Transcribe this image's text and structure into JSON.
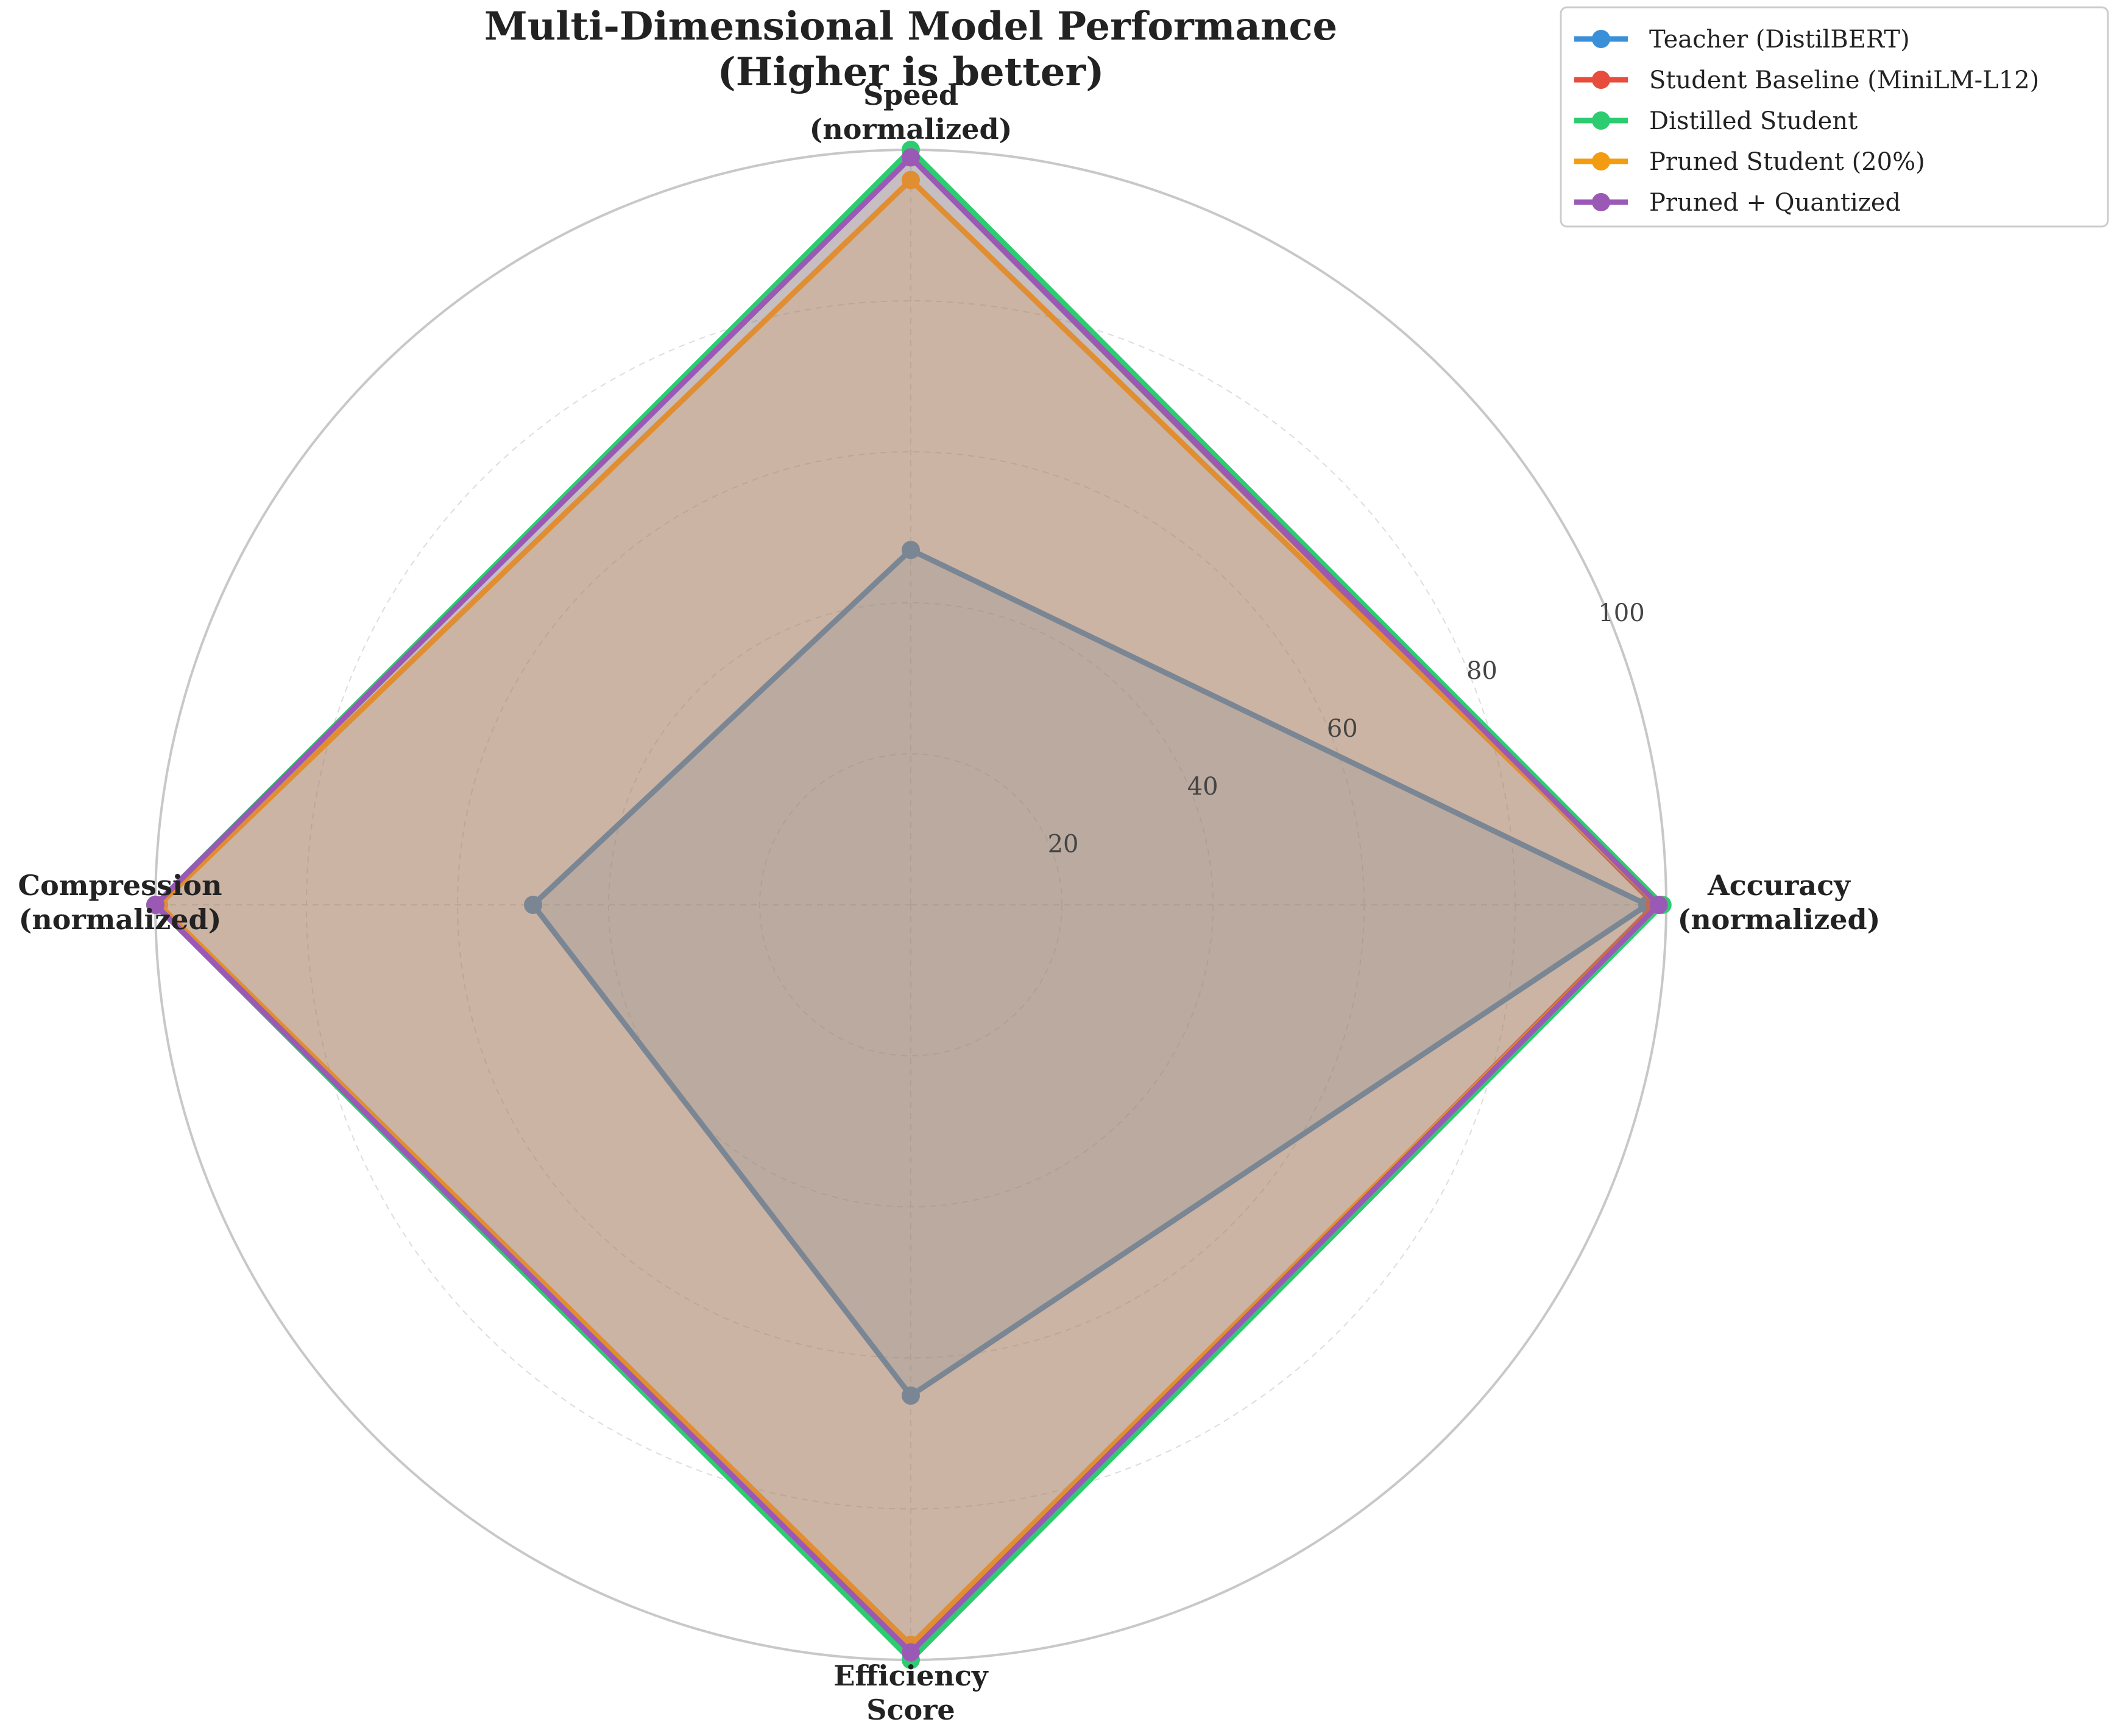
{
  "chart_data": {
    "type": "radar",
    "title": "Multi-Dimensional Model Performance",
    "subtitle": "(Higher is better)",
    "axes": [
      [
        "Accuracy",
        "(normalized)"
      ],
      [
        "Speed",
        "(normalized)"
      ],
      [
        "Compression",
        "(normalized)"
      ],
      [
        "Efficiency",
        "Score"
      ]
    ],
    "rlim": [
      0,
      100
    ],
    "rticks": [
      20,
      40,
      60,
      80,
      100
    ],
    "grid": true,
    "legend_position": "top-right",
    "series": [
      {
        "name": "Teacher (DistilBERT)",
        "color": "#3a8fd9",
        "values": [
          97.5,
          47,
          50,
          65
        ]
      },
      {
        "name": "Student Baseline (MiniLM-L12)",
        "color": "#e74c3c",
        "values": [
          98.5,
          99,
          100,
          99
        ]
      },
      {
        "name": "Distilled Student",
        "color": "#2ecc71",
        "values": [
          99.5,
          100,
          100,
          100
        ]
      },
      {
        "name": "Pruned Student (20%)",
        "color": "#f39c12",
        "values": [
          99,
          96,
          99.5,
          98
        ]
      },
      {
        "name": "Pruned + Quantized",
        "color": "#9b59b6",
        "values": [
          99,
          99,
          100,
          99
        ]
      }
    ]
  }
}
